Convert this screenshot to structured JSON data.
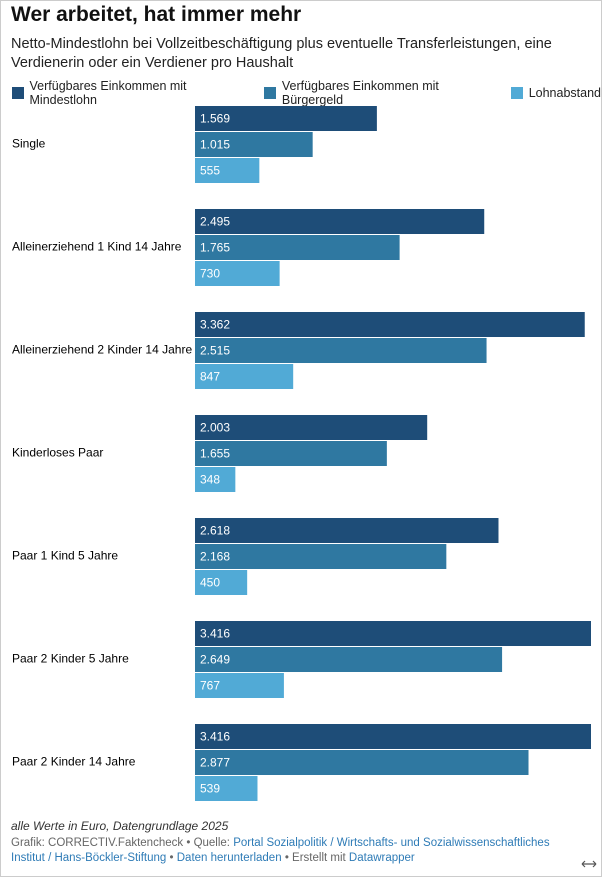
{
  "chart_data": {
    "type": "bar",
    "orientation": "horizontal",
    "title": "Wer arbeitet, hat immer mehr",
    "subtitle": "Netto-Mindestlohn bei Vollzeitbeschäftigung plus eventuelle Transferleistungen, eine Verdienerin oder ein Verdiener pro Haushalt",
    "categories": [
      "Single",
      "Alleinerziehend 1 Kind 14 Jahre",
      "Alleinerziehend 2 Kinder 14 Jahre",
      "Kinderloses Paar",
      "Paar 1 Kind 5 Jahre",
      "Paar 2 Kinder 5 Jahre",
      "Paar 2 Kinder 14 Jahre"
    ],
    "series": [
      {
        "name": "Verfügbares Einkommen mit Mindestlohn",
        "color": "#1e4d78",
        "values": [
          1569,
          2495,
          3362,
          2003,
          2618,
          3416,
          3416
        ],
        "value_labels": [
          "1.569",
          "2.495",
          "3.362",
          "2.003",
          "2.618",
          "3.416",
          "3.416"
        ]
      },
      {
        "name": "Verfügbares Einkommen mit Bürgergeld",
        "color": "#2f78a1",
        "values": [
          1015,
          1765,
          2515,
          1655,
          2168,
          2649,
          2877
        ],
        "value_labels": [
          "1.015",
          "1.765",
          "2.515",
          "1.655",
          "2.168",
          "2.649",
          "2.877"
        ]
      },
      {
        "name": "Lohnabstand",
        "color": "#51aad6",
        "values": [
          555,
          730,
          847,
          348,
          450,
          767,
          539
        ],
        "value_labels": [
          "555",
          "730",
          "847",
          "348",
          "450",
          "767",
          "539"
        ]
      }
    ],
    "note": "alle Werte in Euro, Datengrundlage 2025",
    "footer": {
      "credit": "Grafik: CORRECTIV.Faktencheck",
      "separator": "•",
      "source_label": "Quelle:",
      "source": "Portal Sozialpolitik / Wirtschafts- und Sozialwissenschaftliches Institut / Hans-Böckler-Stiftung",
      "download": "Daten herunterladen",
      "made_with": "Erstellt mit",
      "tool": "Datawrapper"
    }
  }
}
